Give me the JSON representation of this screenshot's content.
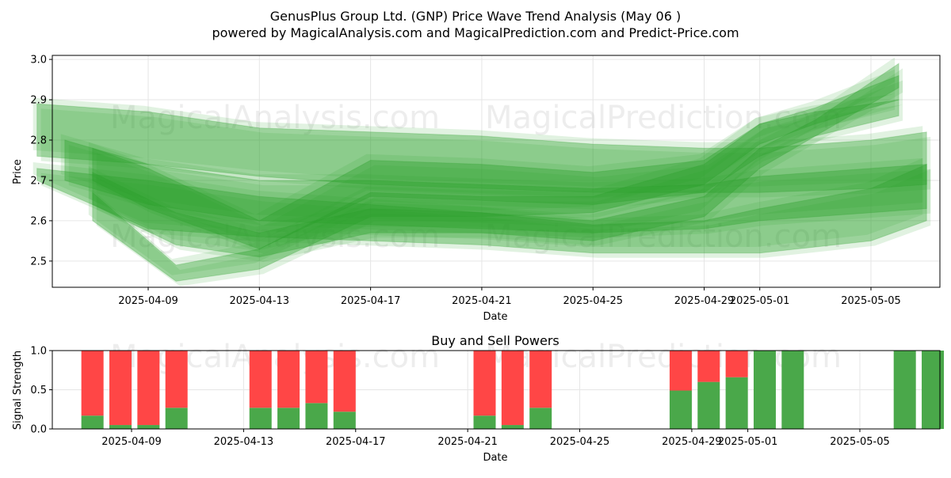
{
  "title": "GenusPlus Group Ltd. (GNP) Price Wave Trend Analysis (May 06 )",
  "subtitle": "powered by MagicalAnalysis.com and MagicalPrediction.com and Predict-Price.com",
  "watermarks": [
    "MagicalAnalysis.com",
    "MagicalPrediction.com"
  ],
  "colors": {
    "band": "#2ca02c",
    "buy": "#4aa84a",
    "sell": "#ff4646",
    "grid": "#e6e6e6"
  },
  "chart_data": [
    {
      "type": "area",
      "title": "",
      "xlabel": "Date",
      "ylabel": "Price",
      "x_range": [
        "2025-04-05",
        "2025-05-07"
      ],
      "ylim": [
        2.435,
        3.01
      ],
      "x_ticks": [
        "2025-04-09",
        "2025-04-13",
        "2025-04-17",
        "2025-04-21",
        "2025-04-25",
        "2025-04-29",
        "2025-05-01",
        "2025-05-05"
      ],
      "y_ticks": [
        "2.5",
        "2.6",
        "2.7",
        "2.8",
        "2.9",
        "3.0"
      ],
      "grid": true,
      "series": [
        {
          "x": [
            "2025-04-05",
            "2025-04-09",
            "2025-04-13",
            "2025-04-17",
            "2025-04-21",
            "2025-04-25",
            "2025-04-29",
            "2025-05-01",
            "2025-05-05",
            "2025-05-07"
          ],
          "upper": [
            2.89,
            2.87,
            2.83,
            2.82,
            2.81,
            2.79,
            2.78,
            2.78,
            2.8,
            2.82
          ],
          "lower": [
            2.76,
            2.74,
            2.71,
            2.69,
            2.68,
            2.67,
            2.67,
            2.67,
            2.68,
            2.69
          ]
        },
        {
          "x": [
            "2025-04-06",
            "2025-04-09",
            "2025-04-13",
            "2025-04-17",
            "2025-04-21",
            "2025-04-25",
            "2025-04-29",
            "2025-05-01",
            "2025-05-05",
            "2025-05-07"
          ],
          "upper": [
            2.8,
            2.74,
            2.7,
            2.7,
            2.69,
            2.68,
            2.69,
            2.71,
            2.73,
            2.74
          ],
          "lower": [
            2.7,
            2.64,
            2.6,
            2.59,
            2.58,
            2.57,
            2.58,
            2.6,
            2.62,
            2.63
          ]
        },
        {
          "x": [
            "2025-04-07",
            "2025-04-10",
            "2025-04-13",
            "2025-04-17",
            "2025-04-21",
            "2025-04-25",
            "2025-04-29",
            "2025-05-01",
            "2025-05-03",
            "2025-05-06"
          ],
          "upper": [
            2.67,
            2.49,
            2.53,
            2.67,
            2.66,
            2.66,
            2.74,
            2.84,
            2.88,
            2.96
          ],
          "lower": [
            2.6,
            2.45,
            2.48,
            2.61,
            2.61,
            2.62,
            2.69,
            2.79,
            2.84,
            2.9
          ]
        },
        {
          "x": [
            "2025-04-07",
            "2025-04-10",
            "2025-04-13",
            "2025-04-17",
            "2025-04-21",
            "2025-04-25",
            "2025-04-29",
            "2025-05-01",
            "2025-05-03",
            "2025-05-06"
          ],
          "upper": [
            2.72,
            2.62,
            2.57,
            2.63,
            2.62,
            2.6,
            2.66,
            2.78,
            2.85,
            2.99
          ],
          "lower": [
            2.64,
            2.54,
            2.51,
            2.57,
            2.57,
            2.55,
            2.61,
            2.73,
            2.81,
            2.93
          ]
        },
        {
          "x": [
            "2025-04-05",
            "2025-04-09",
            "2025-04-13",
            "2025-04-17",
            "2025-04-21",
            "2025-04-25",
            "2025-04-29",
            "2025-05-01",
            "2025-05-05",
            "2025-05-07"
          ],
          "upper": [
            2.73,
            2.7,
            2.66,
            2.64,
            2.62,
            2.59,
            2.6,
            2.63,
            2.68,
            2.74
          ],
          "lower": [
            2.7,
            2.58,
            2.56,
            2.55,
            2.54,
            2.52,
            2.52,
            2.52,
            2.55,
            2.6
          ]
        },
        {
          "x": [
            "2025-04-07",
            "2025-04-09",
            "2025-04-13",
            "2025-04-17",
            "2025-04-21",
            "2025-04-25",
            "2025-04-29",
            "2025-05-01",
            "2025-05-03",
            "2025-05-06"
          ],
          "upper": [
            2.78,
            2.73,
            2.6,
            2.75,
            2.74,
            2.72,
            2.75,
            2.84,
            2.87,
            2.9
          ],
          "lower": [
            2.7,
            2.63,
            2.53,
            2.66,
            2.65,
            2.64,
            2.67,
            2.76,
            2.81,
            2.86
          ]
        }
      ]
    },
    {
      "type": "bar",
      "title": "Buy and Sell Powers",
      "xlabel": "Date",
      "ylabel": "Signal Strength",
      "ylim": [
        0,
        1
      ],
      "y_ticks": [
        "0.0",
        "0.5",
        "1.0"
      ],
      "x_ticks": [
        "2025-04-09",
        "2025-04-13",
        "2025-04-17",
        "2025-04-21",
        "2025-04-25",
        "2025-04-29",
        "2025-05-01",
        "2025-05-05"
      ],
      "categories": [
        "2025-04-08",
        "2025-04-09",
        "2025-04-10",
        "2025-04-11",
        "2025-04-14",
        "2025-04-15",
        "2025-04-16",
        "2025-04-17",
        "2025-04-22",
        "2025-04-23",
        "2025-04-24",
        "2025-04-29",
        "2025-04-30",
        "2025-05-01",
        "2025-05-02",
        "2025-05-03",
        "2025-05-07",
        "2025-05-08"
      ],
      "series": [
        {
          "name": "Buy",
          "values": [
            0.17,
            0.05,
            0.05,
            0.27,
            0.27,
            0.27,
            0.33,
            0.22,
            0.17,
            0.05,
            0.27,
            0.49,
            0.6,
            0.66,
            1.0,
            1.0,
            1.0,
            1.0
          ]
        },
        {
          "name": "Sell",
          "values": [
            0.83,
            0.95,
            0.95,
            0.73,
            0.73,
            0.73,
            0.67,
            0.78,
            0.83,
            0.95,
            0.73,
            0.51,
            0.4,
            0.34,
            0.0,
            0.0,
            0.0,
            0.0
          ]
        }
      ]
    }
  ]
}
